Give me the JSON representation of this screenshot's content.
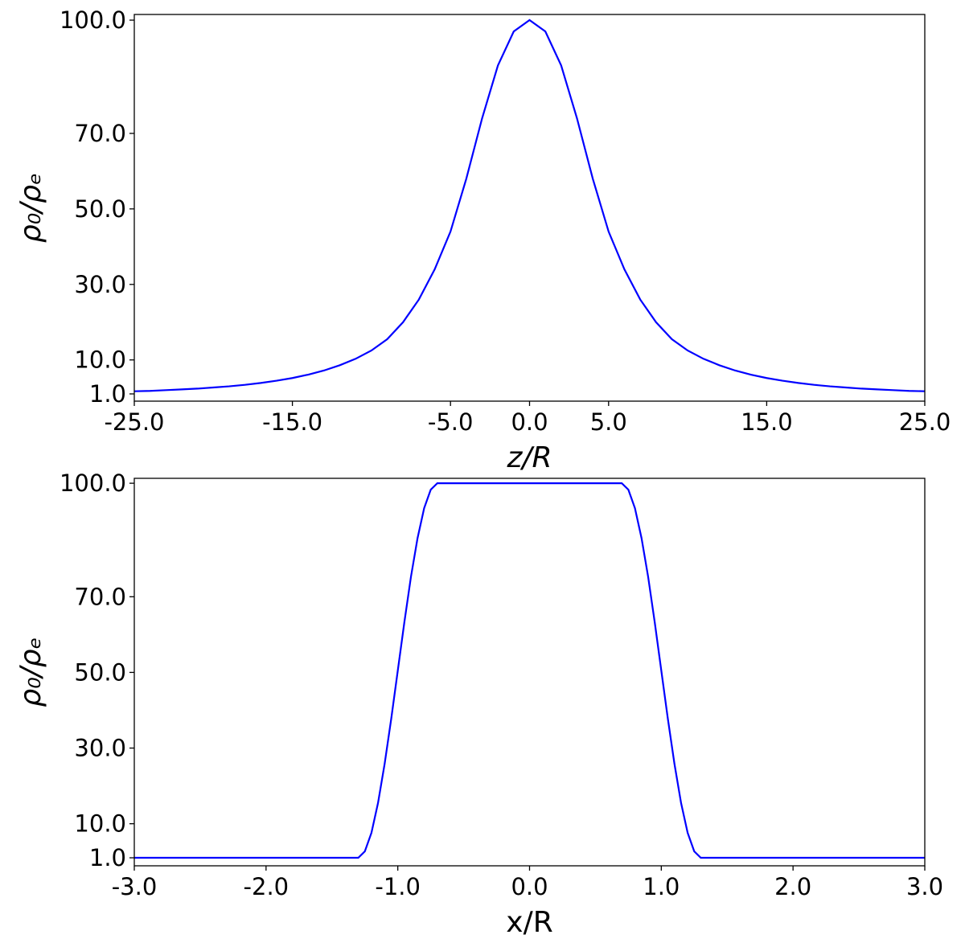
{
  "chart_data": [
    {
      "type": "line",
      "xlabel": "z/R",
      "ylabel": "ρ₀/ρₑ",
      "color": "#0000ff",
      "italic_xlabel": true,
      "x": [
        -25,
        -24,
        -23,
        -22,
        -21,
        -20,
        -19,
        -18,
        -17,
        -16,
        -15,
        -14,
        -13,
        -12,
        -11,
        -10,
        -9,
        -8,
        -7,
        -6,
        -5,
        -4,
        -3,
        -2,
        -1,
        0,
        1,
        2,
        3,
        4,
        5,
        6,
        7,
        8,
        9,
        10,
        11,
        12,
        13,
        14,
        15,
        16,
        17,
        18,
        19,
        20,
        21,
        22,
        23,
        24,
        25
      ],
      "values": [
        1.7,
        1.8,
        2.0,
        2.2,
        2.4,
        2.7,
        3.0,
        3.4,
        3.9,
        4.5,
        5.2,
        6.1,
        7.2,
        8.6,
        10.3,
        12.5,
        15.5,
        20,
        26,
        34,
        44,
        58,
        74,
        88,
        97,
        100,
        97,
        88,
        74,
        58,
        44,
        34,
        26,
        20,
        15.5,
        12.5,
        10.3,
        8.6,
        7.2,
        6.1,
        5.2,
        4.5,
        3.9,
        3.4,
        3.0,
        2.7,
        2.4,
        2.2,
        2.0,
        1.8,
        1.7
      ],
      "xlim": [
        -25,
        25
      ],
      "ylim": [
        -0.92,
        101.5
      ],
      "xticks": [
        {
          "value": -25,
          "label": "-25.0"
        },
        {
          "value": -15,
          "label": "-15.0"
        },
        {
          "value": -5,
          "label": "-5.0"
        },
        {
          "value": 0,
          "label": "0.0"
        },
        {
          "value": 5,
          "label": "5.0"
        },
        {
          "value": 15,
          "label": "15.0"
        },
        {
          "value": 25,
          "label": "25.0"
        }
      ],
      "yticks": [
        {
          "value": 1,
          "label": "1.0"
        },
        {
          "value": 10,
          "label": "10.0"
        },
        {
          "value": 30,
          "label": "30.0"
        },
        {
          "value": 50,
          "label": "50.0"
        },
        {
          "value": 70,
          "label": "70.0"
        },
        {
          "value": 100,
          "label": "100.0"
        }
      ]
    },
    {
      "type": "line",
      "xlabel": "x/R",
      "ylabel": "ρ₀/ρₑ",
      "color": "#0000ff",
      "italic_xlabel": false,
      "x": [
        -3,
        -1.3,
        -1.25,
        -1.2,
        -1.15,
        -1.1,
        -1.05,
        -1.0,
        -0.95,
        -0.9,
        -0.85,
        -0.8,
        -0.75,
        -0.7,
        0.7,
        0.75,
        0.8,
        0.85,
        0.9,
        0.95,
        1.0,
        1.05,
        1.1,
        1.15,
        1.2,
        1.25,
        1.3,
        3
      ],
      "values": [
        1,
        1,
        2.7,
        7.6,
        15.5,
        25.8,
        37.7,
        50.5,
        63.3,
        75.3,
        85.5,
        93.4,
        98.3,
        100,
        100,
        98.3,
        93.4,
        85.5,
        75.3,
        63.3,
        50.5,
        37.7,
        25.8,
        15.5,
        7.6,
        2.7,
        1,
        1
      ],
      "xlim": [
        -3,
        3
      ],
      "ylim": [
        -1.12,
        101.3
      ],
      "xticks": [
        {
          "value": -3,
          "label": "-3.0"
        },
        {
          "value": -2,
          "label": "-2.0"
        },
        {
          "value": -1,
          "label": "-1.0"
        },
        {
          "value": 0,
          "label": "0.0"
        },
        {
          "value": 1,
          "label": "1.0"
        },
        {
          "value": 2,
          "label": "2.0"
        },
        {
          "value": 3,
          "label": "3.0"
        }
      ],
      "yticks": [
        {
          "value": 1,
          "label": "1.0"
        },
        {
          "value": 10,
          "label": "10.0"
        },
        {
          "value": 30,
          "label": "30.0"
        },
        {
          "value": 50,
          "label": "50.0"
        },
        {
          "value": 70,
          "label": "70.0"
        },
        {
          "value": 100,
          "label": "100.0"
        }
      ]
    }
  ]
}
